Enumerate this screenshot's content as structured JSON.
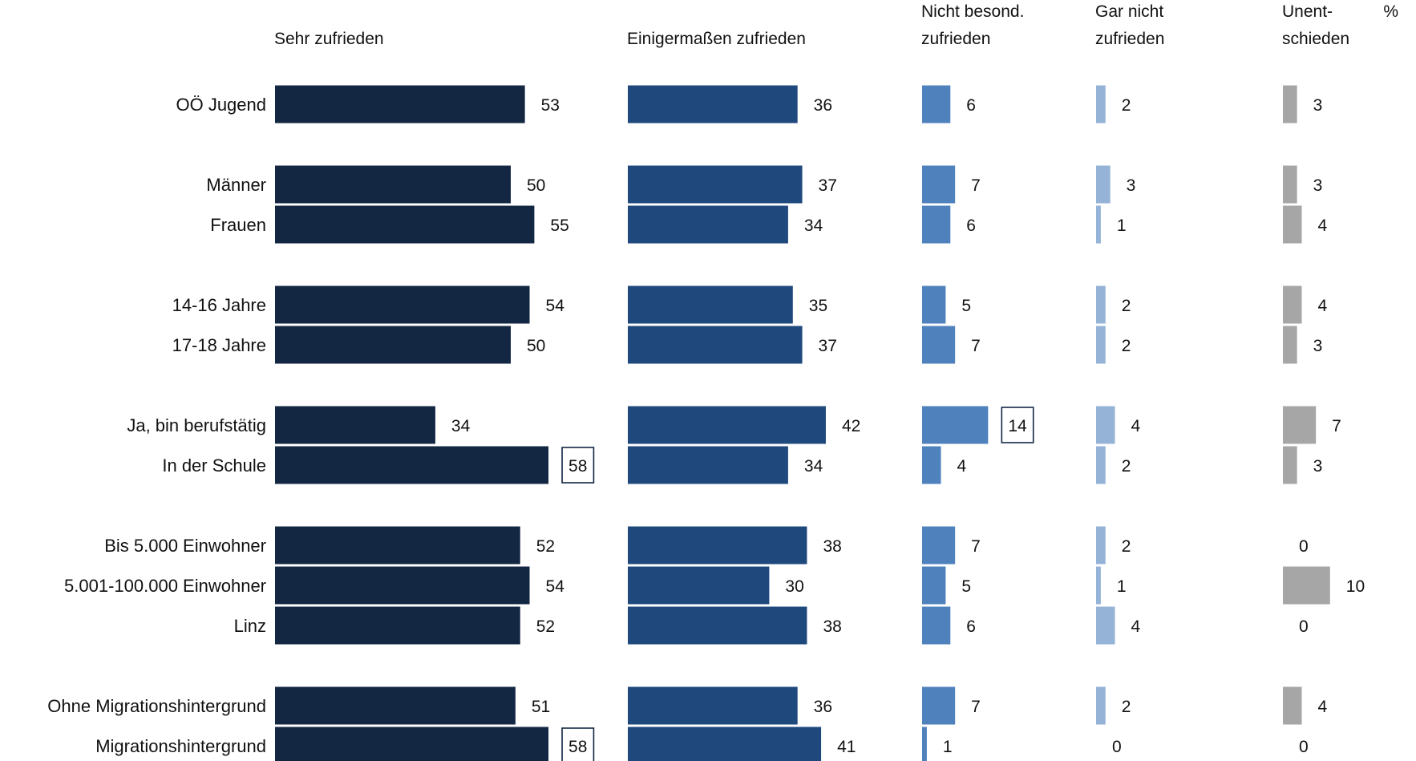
{
  "chart_data": {
    "type": "bar",
    "unit_label": "%",
    "series": [
      {
        "name": "Sehr zufrieden",
        "header_lines": [
          "Sehr zufrieden"
        ],
        "color": "#132743",
        "values": [
          53,
          50,
          55,
          54,
          50,
          34,
          58,
          52,
          54,
          52,
          51,
          58
        ],
        "highlighted": [
          false,
          false,
          false,
          false,
          false,
          false,
          true,
          false,
          false,
          false,
          false,
          true
        ]
      },
      {
        "name": "Einigermaßen zufrieden",
        "header_lines": [
          "Einigermaßen zufrieden"
        ],
        "color": "#1F497D",
        "values": [
          36,
          37,
          34,
          35,
          37,
          42,
          34,
          38,
          30,
          38,
          36,
          41
        ],
        "highlighted": [
          false,
          false,
          false,
          false,
          false,
          false,
          false,
          false,
          false,
          false,
          false,
          false
        ]
      },
      {
        "name": "Nicht besond. zufrieden",
        "header_lines": [
          "Nicht besond.",
          "zufrieden"
        ],
        "color": "#4F81BD",
        "values": [
          6,
          7,
          6,
          5,
          7,
          14,
          4,
          7,
          5,
          6,
          7,
          1
        ],
        "highlighted": [
          false,
          false,
          false,
          false,
          false,
          true,
          false,
          false,
          false,
          false,
          false,
          false
        ]
      },
      {
        "name": "Gar nicht zufrieden",
        "header_lines": [
          "Gar nicht",
          "zufrieden"
        ],
        "color": "#95B3D7",
        "values": [
          2,
          3,
          1,
          2,
          2,
          4,
          2,
          2,
          1,
          4,
          2,
          0
        ],
        "highlighted": [
          false,
          false,
          false,
          false,
          false,
          false,
          false,
          false,
          false,
          false,
          false,
          false
        ]
      },
      {
        "name": "Unentschieden",
        "header_lines": [
          "Unent-",
          "schieden"
        ],
        "color": "#A6A6A6",
        "values": [
          3,
          3,
          4,
          4,
          3,
          7,
          3,
          0,
          10,
          0,
          4,
          0
        ],
        "highlighted": [
          false,
          false,
          false,
          false,
          false,
          false,
          false,
          false,
          false,
          false,
          false,
          false
        ]
      }
    ],
    "groups": [
      [
        "OÖ Jugend"
      ],
      [
        "Männer",
        "Frauen"
      ],
      [
        "14-16 Jahre",
        "17-18 Jahre"
      ],
      [
        "Ja, bin berufstätig",
        "In der Schule"
      ],
      [
        "Bis 5.000 Einwohner",
        "5.001-100.000 Einwohner",
        "Linz"
      ],
      [
        "Ohne Migrationshintergrund",
        "Migrationshintergrund"
      ]
    ],
    "grid": false,
    "legend": "none"
  }
}
